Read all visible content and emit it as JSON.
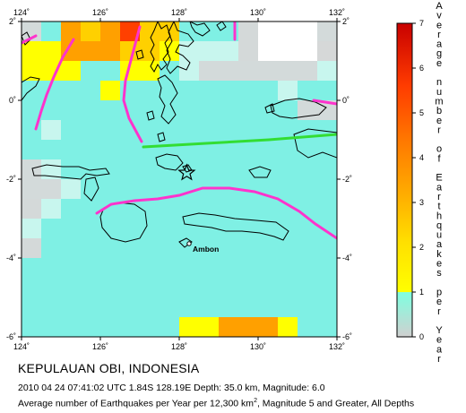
{
  "map": {
    "x_ticks": [
      "124˚",
      "126˚",
      "128˚",
      "130˚",
      "132˚"
    ],
    "y_ticks_left": [
      "2˚",
      "0˚",
      "-2˚",
      "-4˚",
      "-6˚"
    ],
    "y_ticks_right": [
      "2˚",
      "0˚",
      "-2˚",
      "-4˚",
      "-6˚"
    ],
    "city_label": "Ambon",
    "epicenter": {
      "lon": 128.19,
      "lat": -1.84
    },
    "grid_lon_range": [
      124,
      132
    ],
    "grid_lat_range": [
      -6,
      2
    ],
    "grid_cell_deg": 0.5,
    "grid_rows_lat_desc": [
      [
        0.3,
        0.3,
        0.9,
        0.9,
        3.0,
        3.0,
        2.5,
        2.5,
        3.0,
        3.0,
        5.0,
        5.0,
        2.5,
        2.5,
        2.0,
        2.0,
        0.6,
        0.6,
        0.8,
        0.8,
        0.6,
        0.6,
        0.2,
        0.2,
        0.0,
        0.0,
        0.0,
        0.0,
        0.0,
        0.0,
        0.3,
        0.3
      ],
      [
        0.3,
        0.3,
        0.9,
        0.9,
        3.0,
        3.0,
        2.5,
        2.5,
        3.0,
        3.0,
        5.0,
        5.0,
        2.5,
        2.5,
        2.0,
        2.0,
        0.6,
        0.6,
        0.8,
        0.8,
        0.6,
        0.6,
        0.2,
        0.2,
        0.0,
        0.0,
        0.0,
        0.0,
        0.0,
        0.0,
        0.3,
        0.3
      ],
      [
        1.5,
        1.5,
        1.5,
        1.5,
        3.0,
        3.0,
        3.0,
        3.0,
        3.0,
        3.0,
        2.5,
        2.5,
        2.5,
        2.5,
        1.5,
        1.5,
        0.5,
        0.5,
        0.5,
        0.5,
        0.5,
        0.5,
        0.2,
        0.2,
        0.0,
        0.0,
        0.0,
        0.0,
        0.0,
        0.0,
        0.1,
        0.1
      ],
      [
        1.5,
        1.5,
        1.5,
        1.5,
        3.0,
        3.0,
        3.0,
        3.0,
        3.0,
        3.0,
        2.5,
        2.5,
        2.5,
        2.5,
        1.5,
        1.5,
        0.5,
        0.5,
        0.5,
        0.5,
        0.5,
        0.5,
        0.2,
        0.2,
        0.0,
        0.0,
        0.0,
        0.0,
        0.0,
        0.0,
        0.1,
        0.1
      ],
      [
        1.5,
        1.5,
        1.5,
        1.5,
        1.5,
        1.5,
        0.8,
        0.8,
        0.8,
        0.8,
        1.8,
        1.8,
        1.5,
        1.5,
        0.6,
        0.6,
        0.4,
        0.4,
        0.3,
        0.3,
        0.3,
        0.3,
        0.3,
        0.3,
        0.3,
        0.3,
        0.3,
        0.3,
        0.3,
        0.3,
        0.5,
        0.5
      ],
      [
        1.5,
        1.5,
        1.5,
        1.5,
        1.5,
        1.5,
        0.8,
        0.8,
        0.8,
        0.8,
        1.8,
        1.8,
        1.5,
        1.5,
        0.6,
        0.6,
        0.4,
        0.4,
        0.3,
        0.3,
        0.3,
        0.3,
        0.3,
        0.3,
        0.3,
        0.3,
        0.3,
        0.3,
        0.3,
        0.3,
        0.5,
        0.5
      ],
      [
        0.7,
        0.7,
        0.7,
        0.7,
        0.7,
        0.7,
        0.7,
        0.7,
        1.5,
        1.5,
        0.8,
        0.8,
        0.8,
        0.8,
        0.6,
        0.6,
        0.6,
        0.6,
        0.6,
        0.6,
        0.6,
        0.6,
        0.6,
        0.6,
        0.6,
        0.6,
        0.5,
        0.5,
        0.6,
        0.6,
        0.6,
        0.6
      ],
      [
        0.7,
        0.7,
        0.7,
        0.7,
        0.7,
        0.7,
        0.7,
        0.7,
        1.5,
        1.5,
        0.8,
        0.8,
        0.8,
        0.8,
        0.6,
        0.6,
        0.6,
        0.6,
        0.6,
        0.6,
        0.6,
        0.6,
        0.6,
        0.6,
        0.6,
        0.6,
        0.5,
        0.5,
        0.6,
        0.6,
        0.6,
        0.6
      ],
      [
        0.7,
        0.7,
        0.6,
        0.6,
        0.6,
        0.6,
        0.6,
        0.6,
        0.6,
        0.6,
        0.6,
        0.6,
        0.6,
        0.6,
        0.7,
        0.7,
        0.7,
        0.7,
        0.6,
        0.6,
        0.6,
        0.6,
        0.6,
        0.6,
        0.6,
        0.6,
        0.6,
        0.6,
        0.3,
        0.3,
        0.3,
        0.3
      ],
      [
        0.7,
        0.7,
        0.6,
        0.6,
        0.6,
        0.6,
        0.6,
        0.6,
        0.6,
        0.6,
        0.6,
        0.6,
        0.6,
        0.6,
        0.7,
        0.7,
        0.7,
        0.7,
        0.6,
        0.6,
        0.6,
        0.6,
        0.6,
        0.6,
        0.6,
        0.6,
        0.6,
        0.6,
        0.3,
        0.3,
        0.3,
        0.3
      ],
      [
        0.6,
        0.6,
        0.4,
        0.4,
        0.6,
        0.6,
        0.6,
        0.6,
        0.6,
        0.6,
        0.6,
        0.6,
        0.6,
        0.6,
        0.6,
        0.6,
        0.6,
        0.6,
        0.6,
        0.6,
        0.6,
        0.6,
        0.6,
        0.6,
        0.6,
        0.6,
        0.6,
        0.6,
        0.6,
        0.6,
        0.6,
        0.6
      ],
      [
        0.6,
        0.6,
        0.4,
        0.4,
        0.6,
        0.6,
        0.6,
        0.6,
        0.6,
        0.6,
        0.6,
        0.6,
        0.6,
        0.6,
        0.6,
        0.6,
        0.6,
        0.6,
        0.6,
        0.6,
        0.6,
        0.6,
        0.6,
        0.6,
        0.6,
        0.6,
        0.6,
        0.6,
        0.6,
        0.6,
        0.6,
        0.6
      ],
      [
        0.6,
        0.6,
        0.6,
        0.6,
        0.6,
        0.6,
        0.6,
        0.6,
        0.6,
        0.6,
        0.6,
        0.6,
        0.6,
        0.6,
        0.6,
        0.6,
        0.6,
        0.6,
        0.6,
        0.6,
        0.6,
        0.6,
        0.6,
        0.6,
        0.6,
        0.6,
        0.6,
        0.6,
        0.6,
        0.6,
        0.6,
        0.6
      ],
      [
        0.6,
        0.6,
        0.6,
        0.6,
        0.6,
        0.6,
        0.6,
        0.6,
        0.6,
        0.6,
        0.6,
        0.6,
        0.6,
        0.6,
        0.6,
        0.6,
        0.6,
        0.6,
        0.6,
        0.6,
        0.6,
        0.6,
        0.6,
        0.6,
        0.6,
        0.6,
        0.6,
        0.6,
        0.6,
        0.6,
        0.6,
        0.6
      ],
      [
        0.3,
        0.3,
        0.5,
        0.5,
        0.6,
        0.6,
        0.6,
        0.6,
        0.6,
        0.6,
        0.6,
        0.6,
        0.6,
        0.6,
        0.6,
        0.6,
        0.6,
        0.6,
        0.6,
        0.6,
        0.6,
        0.6,
        0.6,
        0.6,
        0.6,
        0.6,
        0.6,
        0.6,
        0.6,
        0.6,
        0.6,
        0.6
      ],
      [
        0.3,
        0.3,
        0.5,
        0.5,
        0.6,
        0.6,
        0.6,
        0.6,
        0.6,
        0.6,
        0.6,
        0.6,
        0.6,
        0.6,
        0.6,
        0.6,
        0.6,
        0.6,
        0.6,
        0.6,
        0.6,
        0.6,
        0.6,
        0.6,
        0.6,
        0.6,
        0.6,
        0.6,
        0.6,
        0.6,
        0.6,
        0.6
      ],
      [
        0.3,
        0.3,
        0.3,
        0.3,
        0.5,
        0.5,
        0.6,
        0.6,
        0.6,
        0.6,
        0.6,
        0.6,
        0.6,
        0.6,
        0.6,
        0.6,
        0.6,
        0.6,
        0.6,
        0.6,
        0.6,
        0.6,
        0.6,
        0.6,
        0.6,
        0.6,
        0.6,
        0.6,
        0.6,
        0.6,
        0.6,
        0.6
      ],
      [
        0.3,
        0.3,
        0.3,
        0.3,
        0.5,
        0.5,
        0.6,
        0.6,
        0.6,
        0.6,
        0.6,
        0.6,
        0.6,
        0.6,
        0.6,
        0.6,
        0.6,
        0.6,
        0.6,
        0.6,
        0.6,
        0.6,
        0.6,
        0.6,
        0.6,
        0.6,
        0.6,
        0.6,
        0.6,
        0.6,
        0.6,
        0.6
      ],
      [
        0.2,
        0.2,
        0.4,
        0.4,
        0.6,
        0.6,
        0.6,
        0.6,
        0.6,
        0.6,
        0.6,
        0.6,
        0.6,
        0.6,
        0.6,
        0.6,
        0.6,
        0.6,
        0.6,
        0.6,
        0.6,
        0.6,
        0.6,
        0.6,
        0.6,
        0.6,
        0.6,
        0.6,
        0.6,
        0.6,
        0.6,
        0.6
      ],
      [
        0.2,
        0.2,
        0.4,
        0.4,
        0.6,
        0.6,
        0.6,
        0.6,
        0.6,
        0.6,
        0.6,
        0.6,
        0.6,
        0.6,
        0.6,
        0.6,
        0.6,
        0.6,
        0.6,
        0.6,
        0.6,
        0.6,
        0.6,
        0.6,
        0.6,
        0.6,
        0.6,
        0.6,
        0.6,
        0.6,
        0.6,
        0.6
      ],
      [
        0.4,
        0.4,
        0.6,
        0.6,
        0.6,
        0.6,
        0.6,
        0.6,
        0.6,
        0.6,
        0.6,
        0.6,
        0.6,
        0.6,
        0.6,
        0.6,
        0.6,
        0.6,
        0.6,
        0.6,
        0.6,
        0.6,
        0.6,
        0.6,
        0.6,
        0.6,
        0.6,
        0.6,
        0.6,
        0.6,
        0.6,
        0.6
      ],
      [
        0.4,
        0.4,
        0.6,
        0.6,
        0.6,
        0.6,
        0.6,
        0.6,
        0.6,
        0.6,
        0.6,
        0.6,
        0.6,
        0.6,
        0.6,
        0.6,
        0.6,
        0.6,
        0.6,
        0.6,
        0.6,
        0.6,
        0.6,
        0.6,
        0.6,
        0.6,
        0.6,
        0.6,
        0.6,
        0.6,
        0.6,
        0.6
      ],
      [
        0.2,
        0.2,
        0.6,
        0.6,
        0.6,
        0.6,
        0.6,
        0.6,
        0.6,
        0.6,
        0.6,
        0.6,
        0.6,
        0.6,
        0.6,
        0.6,
        0.6,
        0.6,
        0.6,
        0.6,
        0.6,
        0.6,
        0.6,
        0.6,
        0.6,
        0.6,
        0.6,
        0.6,
        0.6,
        0.6,
        0.6,
        0.6
      ],
      [
        0.2,
        0.2,
        0.6,
        0.6,
        0.6,
        0.6,
        0.6,
        0.6,
        0.6,
        0.6,
        0.6,
        0.6,
        0.6,
        0.6,
        0.6,
        0.6,
        0.6,
        0.6,
        0.6,
        0.6,
        0.6,
        0.6,
        0.6,
        0.6,
        0.6,
        0.6,
        0.6,
        0.6,
        0.6,
        0.6,
        0.6,
        0.6
      ],
      [
        0.6,
        0.6,
        0.6,
        0.6,
        0.6,
        0.6,
        0.6,
        0.6,
        0.6,
        0.6,
        0.6,
        0.6,
        0.6,
        0.6,
        0.6,
        0.6,
        0.6,
        0.6,
        0.6,
        0.6,
        0.6,
        0.6,
        0.6,
        0.6,
        0.6,
        0.6,
        0.6,
        0.6,
        0.6,
        0.6,
        0.6,
        0.6
      ],
      [
        0.6,
        0.6,
        0.6,
        0.6,
        0.6,
        0.6,
        0.6,
        0.6,
        0.6,
        0.6,
        0.6,
        0.6,
        0.6,
        0.6,
        0.6,
        0.6,
        0.6,
        0.6,
        0.6,
        0.6,
        0.6,
        0.6,
        0.6,
        0.6,
        0.6,
        0.6,
        0.6,
        0.6,
        0.6,
        0.6,
        0.6,
        0.6
      ],
      [
        0.6,
        0.6,
        0.6,
        0.6,
        0.6,
        0.6,
        0.6,
        0.6,
        0.6,
        0.6,
        0.6,
        0.6,
        0.6,
        0.6,
        0.6,
        0.6,
        0.6,
        0.6,
        0.6,
        0.6,
        0.6,
        0.6,
        0.6,
        0.6,
        0.6,
        0.6,
        0.6,
        0.6,
        0.6,
        0.6,
        0.6,
        0.6
      ],
      [
        0.6,
        0.6,
        0.6,
        0.6,
        0.6,
        0.6,
        0.6,
        0.6,
        0.6,
        0.6,
        0.6,
        0.6,
        0.6,
        0.6,
        0.6,
        0.6,
        0.6,
        0.6,
        0.6,
        0.6,
        0.6,
        0.6,
        0.6,
        0.6,
        0.6,
        0.6,
        0.6,
        0.6,
        0.6,
        0.6,
        0.6,
        0.6
      ],
      [
        0.6,
        0.6,
        0.6,
        0.6,
        0.6,
        0.6,
        0.6,
        0.6,
        0.6,
        0.6,
        0.6,
        0.6,
        0.6,
        0.6,
        0.6,
        0.6,
        0.6,
        0.6,
        0.6,
        0.6,
        0.6,
        0.6,
        0.6,
        0.6,
        0.6,
        0.6,
        0.6,
        0.6,
        0.6,
        0.6,
        0.6,
        0.6
      ],
      [
        0.6,
        0.6,
        0.6,
        0.6,
        0.6,
        0.6,
        0.6,
        0.6,
        0.6,
        0.6,
        0.6,
        0.6,
        0.6,
        0.6,
        0.6,
        0.6,
        0.6,
        0.6,
        0.6,
        0.6,
        0.6,
        0.6,
        0.6,
        0.6,
        0.6,
        0.6,
        0.6,
        0.6,
        0.6,
        0.6,
        0.6,
        0.6
      ],
      [
        0.6,
        0.6,
        0.6,
        0.6,
        0.6,
        0.6,
        0.6,
        0.6,
        0.6,
        0.6,
        0.6,
        0.6,
        0.6,
        0.6,
        0.6,
        0.6,
        1.5,
        1.5,
        1.5,
        1.5,
        3.0,
        3.0,
        3.0,
        3.0,
        3.0,
        3.0,
        1.5,
        1.5,
        0.6,
        0.6,
        0.6,
        0.6
      ],
      [
        0.6,
        0.6,
        0.6,
        0.6,
        0.6,
        0.6,
        0.6,
        0.6,
        0.6,
        0.6,
        0.6,
        0.6,
        0.6,
        0.6,
        0.6,
        0.6,
        1.5,
        1.5,
        1.5,
        1.5,
        3.0,
        3.0,
        3.0,
        3.0,
        3.0,
        3.0,
        1.5,
        1.5,
        0.6,
        0.6,
        0.6,
        0.6
      ]
    ]
  },
  "legend": {
    "title_vertical": "Average number of Earthquakes per Year",
    "ticks": [
      "7",
      "6",
      "5",
      "4",
      "3",
      "2",
      "1",
      "0"
    ],
    "colors": {
      "0": "#d8d8d8",
      "1": "#7fffe0",
      "1b": "#ffff00",
      "2": "#ffc800",
      "4": "#ff7f00",
      "7": "#d00000"
    }
  },
  "caption": {
    "title": "KEPULAUAN OBI, INDONESIA",
    "line2": "2010 04 24 07:41:02 UTC 1.84S 128.19E Depth: 35.0 km, Magnitude: 6.0",
    "line3_pre": "Average number of Earthquakes per Year per 12,300 km",
    "line3_sup": "2",
    "line3_post": ", Magnitude 5 and Greater, All Depths"
  },
  "colors": {
    "plate_boundary": "#ff33cc",
    "fault_green": "#33dd33",
    "coast": "#000000"
  }
}
